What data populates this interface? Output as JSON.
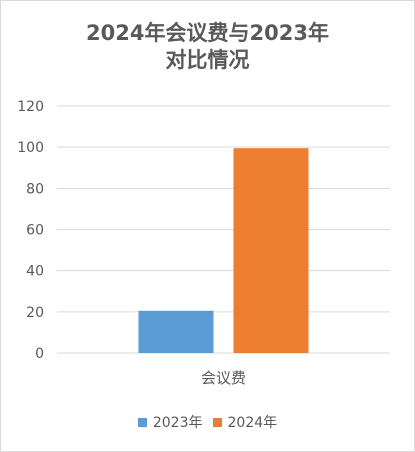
{
  "chart_data": {
    "type": "bar",
    "title_lines": [
      "2024年会议费与2023年",
      "对比情况"
    ],
    "categories": [
      "会议费"
    ],
    "series": [
      {
        "name": "2023年",
        "values": [
          20.5
        ],
        "color": "#5B9BD5"
      },
      {
        "name": "2024年",
        "values": [
          99.5
        ],
        "color": "#ED7D31"
      }
    ],
    "ylim": [
      0,
      120
    ],
    "yticks": [
      "0",
      "20",
      "40",
      "60",
      "80",
      "100",
      "120"
    ],
    "grid": true,
    "legend_position": "bottom"
  }
}
